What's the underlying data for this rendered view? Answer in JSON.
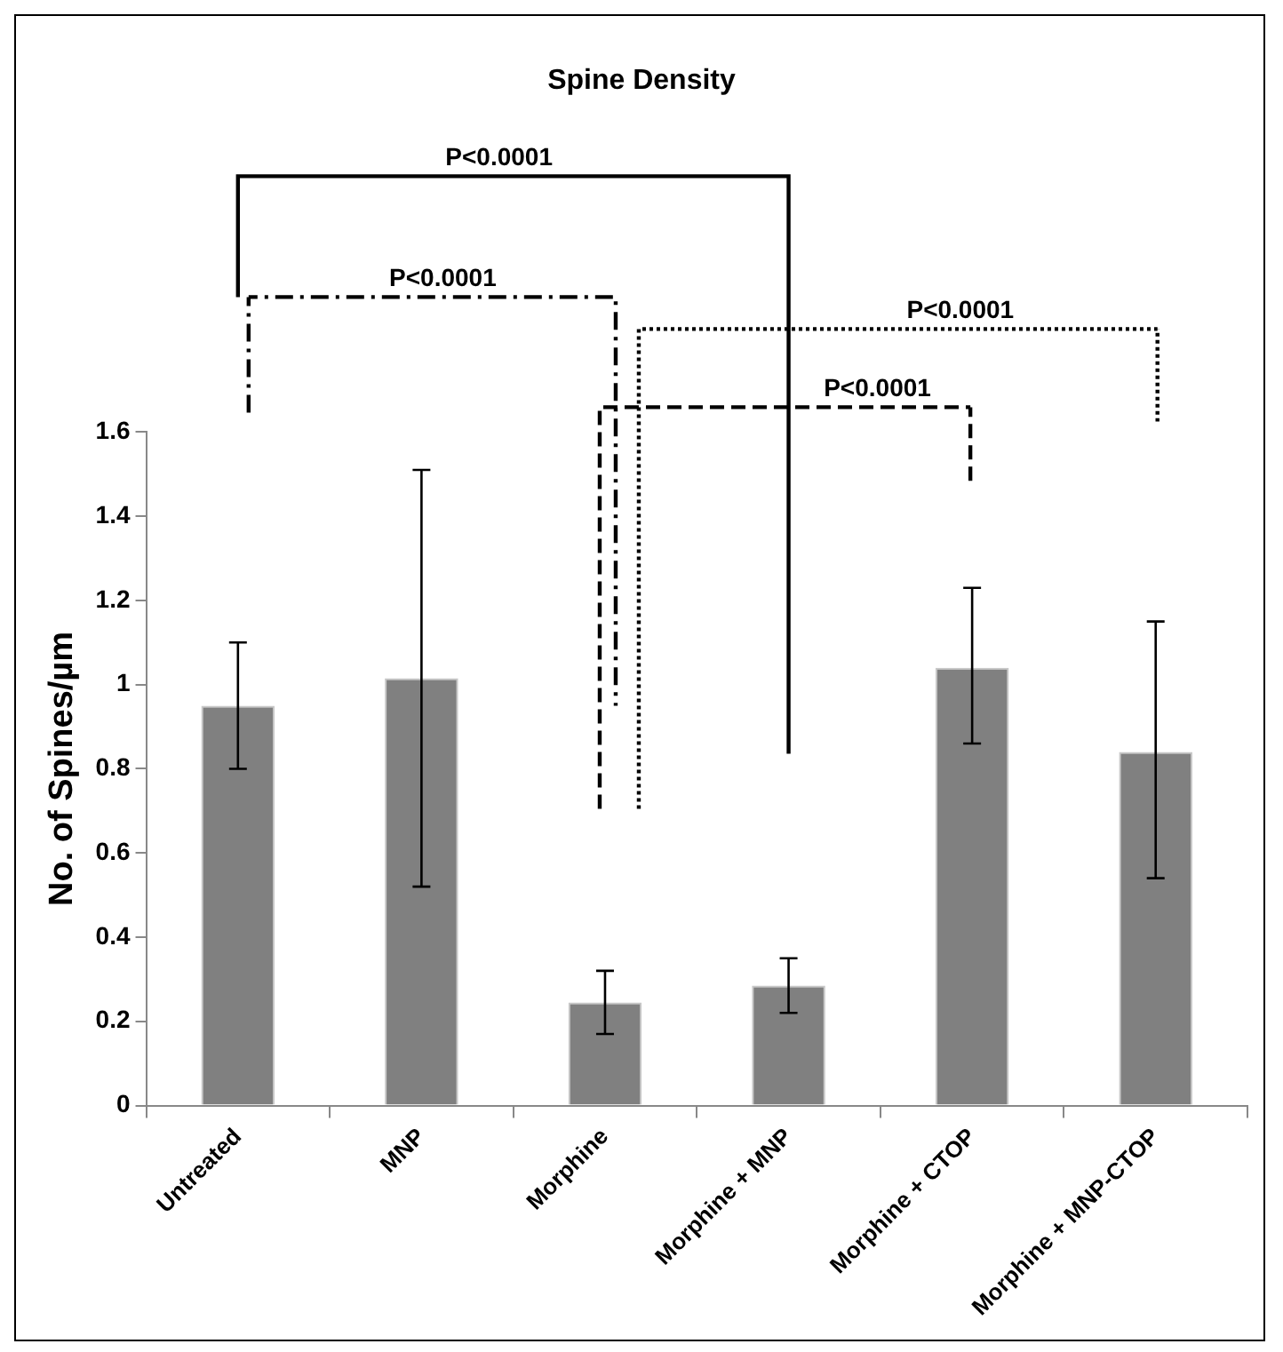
{
  "chart_data": {
    "type": "bar",
    "title": "Spine Density",
    "ylabel": "No. of Spines/µm",
    "categories": [
      "Untreated",
      "MNP",
      "Morphine",
      "Morphine + MNP",
      "Morphine + CTOP",
      "Morphine + MNP-CTOP"
    ],
    "values": [
      0.95,
      1.015,
      0.245,
      0.285,
      1.04,
      0.84
    ],
    "errors": [
      [
        0.8,
        1.1
      ],
      [
        0.52,
        1.51
      ],
      [
        0.17,
        0.32
      ],
      [
        0.22,
        0.35
      ],
      [
        0.86,
        1.23
      ],
      [
        0.54,
        1.15
      ]
    ],
    "color": "#808080",
    "ylim": [
      0,
      1.6
    ],
    "yticks": [
      0,
      0.2,
      0.4,
      0.6,
      0.8,
      1,
      1.2,
      1.4,
      1.6
    ],
    "grid": false,
    "legend": false,
    "annotations": [
      "P<0.0001",
      "P<0.0001",
      "P<0.0001",
      "P<0.0001"
    ]
  }
}
